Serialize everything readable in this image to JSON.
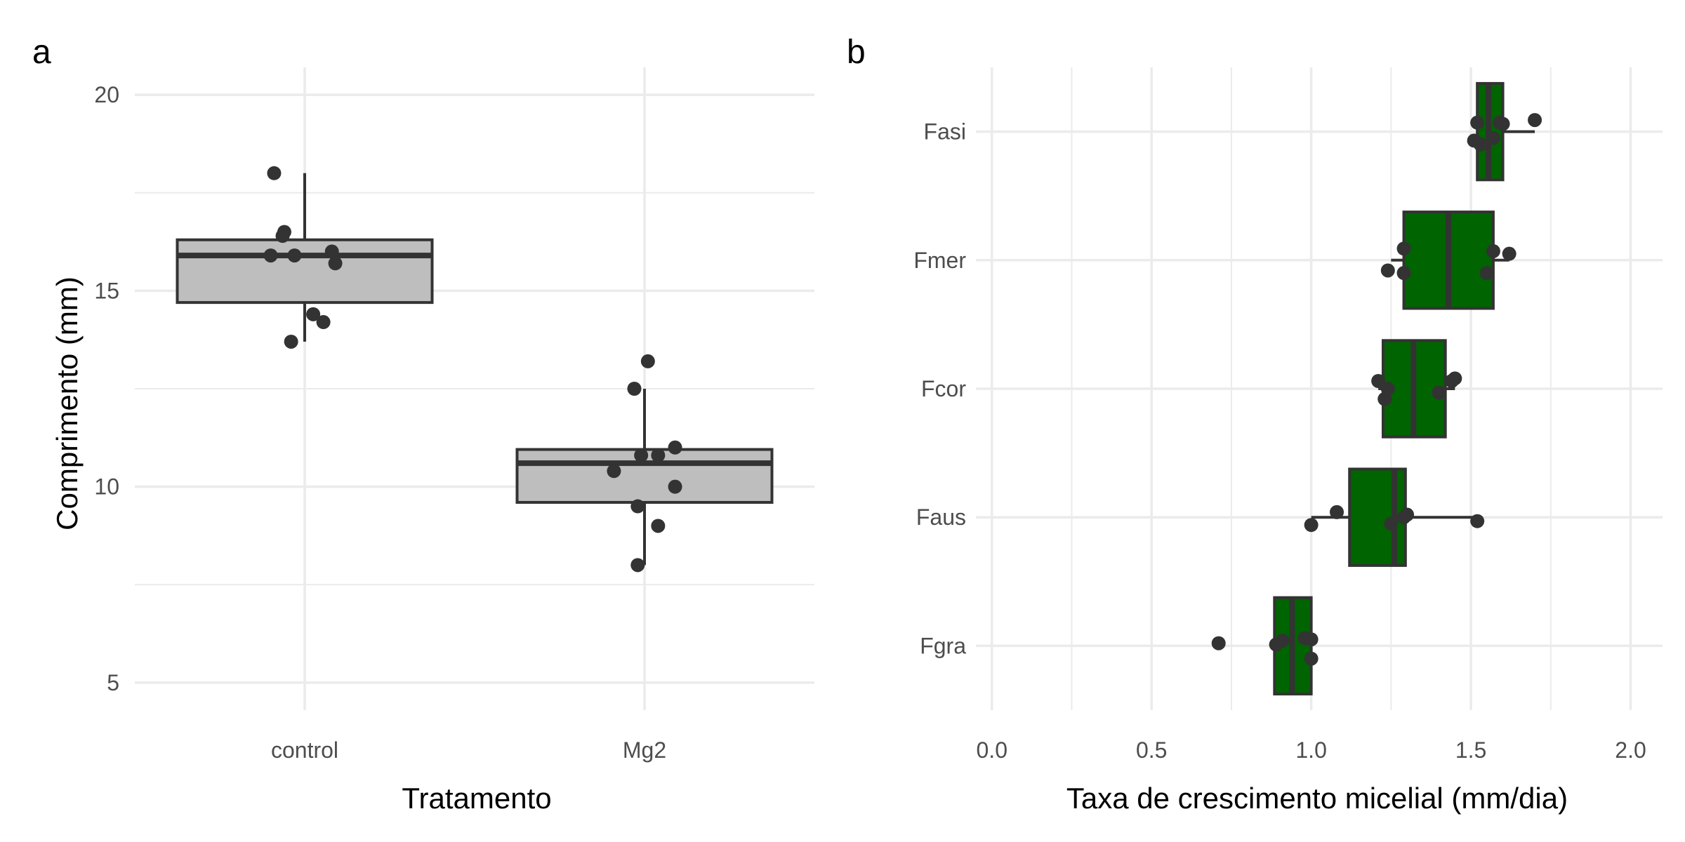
{
  "chart_data": [
    {
      "panel_tag": "a",
      "type": "box",
      "orientation": "vertical",
      "xlabel": "Tratamento",
      "ylabel": "Comprimento (mm)",
      "ylim": [
        4.3,
        20.7
      ],
      "yticks": [
        5,
        10,
        15,
        20
      ],
      "grid": true,
      "box_fill": "#bebebe",
      "box_stroke": "#333333",
      "point_color": "#333333",
      "categories": [
        "control",
        "Mg2"
      ],
      "boxes": [
        {
          "category": "control",
          "min": 13.7,
          "q1": 14.7,
          "median": 15.9,
          "q3": 16.3,
          "max": 18.0
        },
        {
          "category": "Mg2",
          "min": 8.0,
          "q1": 9.6,
          "median": 10.6,
          "q3": 10.95,
          "max": 12.5
        }
      ],
      "points": [
        {
          "category": "control",
          "jitter": -0.09,
          "y": 18.0
        },
        {
          "category": "control",
          "jitter": -0.06,
          "y": 16.5
        },
        {
          "category": "control",
          "jitter": -0.065,
          "y": 16.4
        },
        {
          "category": "control",
          "jitter": -0.1,
          "y": 15.9
        },
        {
          "category": "control",
          "jitter": -0.03,
          "y": 15.9
        },
        {
          "category": "control",
          "jitter": 0.08,
          "y": 16.0
        },
        {
          "category": "control",
          "jitter": 0.09,
          "y": 15.7
        },
        {
          "category": "control",
          "jitter": 0.025,
          "y": 14.4
        },
        {
          "category": "control",
          "jitter": 0.055,
          "y": 14.2
        },
        {
          "category": "control",
          "jitter": -0.04,
          "y": 13.7
        },
        {
          "category": "Mg2",
          "jitter": 0.01,
          "y": 13.2
        },
        {
          "category": "Mg2",
          "jitter": -0.03,
          "y": 12.5
        },
        {
          "category": "Mg2",
          "jitter": 0.09,
          "y": 11.0
        },
        {
          "category": "Mg2",
          "jitter": -0.01,
          "y": 10.8
        },
        {
          "category": "Mg2",
          "jitter": 0.04,
          "y": 10.8
        },
        {
          "category": "Mg2",
          "jitter": -0.09,
          "y": 10.4
        },
        {
          "category": "Mg2",
          "jitter": 0.09,
          "y": 10.0
        },
        {
          "category": "Mg2",
          "jitter": -0.02,
          "y": 9.5
        },
        {
          "category": "Mg2",
          "jitter": 0.04,
          "y": 9.0
        },
        {
          "category": "Mg2",
          "jitter": -0.02,
          "y": 8.0
        }
      ]
    },
    {
      "panel_tag": "b",
      "type": "box",
      "orientation": "horizontal",
      "xlabel": "Taxa de crescimento micelial (mm/dia)",
      "ylabel": "",
      "xlim": [
        -0.05,
        2.1
      ],
      "xticks": [
        "0.0",
        "0.5",
        "1.0",
        "1.5",
        "2.0"
      ],
      "grid": true,
      "box_fill": "#006400",
      "box_stroke": "#333333",
      "point_color": "#333333",
      "categories": [
        "Fasi",
        "Fmer",
        "Fcor",
        "Faus",
        "Fgra"
      ],
      "boxes": [
        {
          "category": "Fasi",
          "min": 1.52,
          "q1": 1.52,
          "median": 1.555,
          "q3": 1.6,
          "max": 1.7
        },
        {
          "category": "Fmer",
          "min": 1.25,
          "q1": 1.29,
          "median": 1.43,
          "q3": 1.57,
          "max": 1.62
        },
        {
          "category": "Fcor",
          "min": 1.21,
          "q1": 1.225,
          "median": 1.32,
          "q3": 1.42,
          "max": 1.45
        },
        {
          "category": "Faus",
          "min": 1.0,
          "q1": 1.12,
          "median": 1.26,
          "q3": 1.295,
          "max": 1.52
        },
        {
          "category": "Fgra",
          "min": 0.88,
          "q1": 0.885,
          "median": 0.94,
          "q3": 1.0,
          "max": 1.0
        }
      ],
      "points": [
        {
          "category": "Fasi",
          "x": 1.51,
          "jitter": 0.07
        },
        {
          "category": "Fasi",
          "x": 1.53,
          "jitter": 0.1
        },
        {
          "category": "Fasi",
          "x": 1.57,
          "jitter": 0.05
        },
        {
          "category": "Fasi",
          "x": 1.52,
          "jitter": -0.07
        },
        {
          "category": "Fasi",
          "x": 1.6,
          "jitter": -0.06
        },
        {
          "category": "Fasi",
          "x": 1.59,
          "jitter": -0.07
        },
        {
          "category": "Fasi",
          "x": 1.7,
          "jitter": -0.09
        },
        {
          "category": "Fmer",
          "x": 1.24,
          "jitter": 0.08
        },
        {
          "category": "Fmer",
          "x": 1.29,
          "jitter": 0.1
        },
        {
          "category": "Fmer",
          "x": 1.55,
          "jitter": 0.1
        },
        {
          "category": "Fmer",
          "x": 1.57,
          "jitter": -0.07
        },
        {
          "category": "Fmer",
          "x": 1.62,
          "jitter": -0.05
        },
        {
          "category": "Fmer",
          "x": 1.29,
          "jitter": -0.09
        },
        {
          "category": "Fcor",
          "x": 1.23,
          "jitter": 0.08
        },
        {
          "category": "Fcor",
          "x": 1.24,
          "jitter": 0.0
        },
        {
          "category": "Fcor",
          "x": 1.21,
          "jitter": -0.06
        },
        {
          "category": "Fcor",
          "x": 1.4,
          "jitter": 0.03
        },
        {
          "category": "Fcor",
          "x": 1.44,
          "jitter": -0.06
        },
        {
          "category": "Fcor",
          "x": 1.45,
          "jitter": -0.08
        },
        {
          "category": "Faus",
          "x": 1.0,
          "jitter": 0.06
        },
        {
          "category": "Faus",
          "x": 1.08,
          "jitter": -0.04
        },
        {
          "category": "Faus",
          "x": 1.25,
          "jitter": 0.05
        },
        {
          "category": "Faus",
          "x": 1.29,
          "jitter": 0.0
        },
        {
          "category": "Faus",
          "x": 1.3,
          "jitter": -0.02
        },
        {
          "category": "Faus",
          "x": 1.52,
          "jitter": 0.03
        },
        {
          "category": "Fgra",
          "x": 0.71,
          "jitter": -0.02
        },
        {
          "category": "Fgra",
          "x": 0.89,
          "jitter": -0.01
        },
        {
          "category": "Fgra",
          "x": 0.91,
          "jitter": -0.04
        },
        {
          "category": "Fgra",
          "x": 1.0,
          "jitter": 0.1
        },
        {
          "category": "Fgra",
          "x": 0.98,
          "jitter": -0.06
        },
        {
          "category": "Fgra",
          "x": 1.0,
          "jitter": -0.05
        }
      ]
    }
  ]
}
